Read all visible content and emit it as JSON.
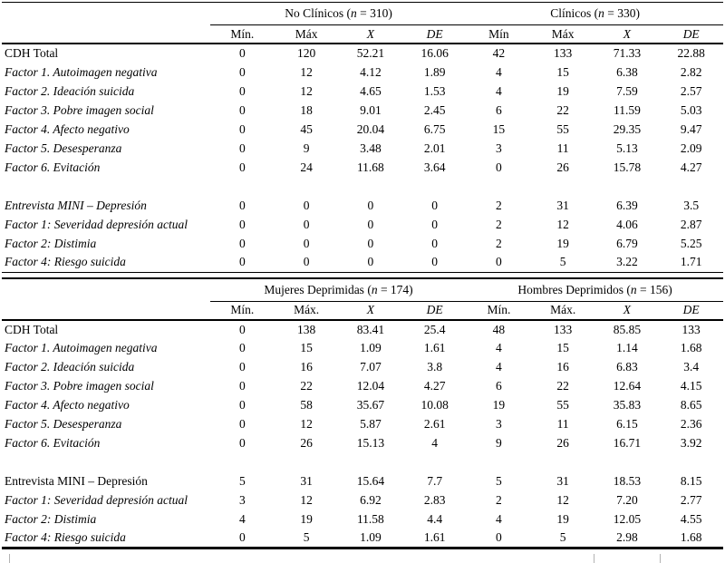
{
  "page": {
    "background_color": "#ffffff",
    "text_color": "#000000",
    "rule_color": "#000000",
    "cutoff_line_color": "#b3b3b3"
  },
  "tables": [
    {
      "name": "no-clinicos-vs-clinicos",
      "groups": [
        {
          "pre": "No Clínicos (",
          "nvar": "n",
          "post": " = 310)"
        },
        {
          "pre": "Clínicos (",
          "nvar": "n",
          "post": " = 330)"
        }
      ],
      "subheaders": [
        {
          "t": "Mín.",
          "i": false
        },
        {
          "t": "Máx",
          "i": false
        },
        {
          "t": "X",
          "i": true
        },
        {
          "t": "DE",
          "i": true
        },
        {
          "t": "Mín",
          "i": false
        },
        {
          "t": "Máx",
          "i": false
        },
        {
          "t": "X",
          "i": true
        },
        {
          "t": "DE",
          "i": true
        }
      ],
      "rows": [
        {
          "label": "CDH Total",
          "italic": false,
          "values": [
            "0",
            "120",
            "52.21",
            "16.06",
            "42",
            "133",
            "71.33",
            "22.88"
          ]
        },
        {
          "label": "Factor 1. Autoimagen negativa",
          "italic": true,
          "values": [
            "0",
            "12",
            "4.12",
            "1.89",
            "4",
            "15",
            "6.38",
            "2.82"
          ]
        },
        {
          "label": "Factor 2. Ideación suicida",
          "italic": true,
          "values": [
            "0",
            "12",
            "4.65",
            "1.53",
            "4",
            "19",
            "7.59",
            "2.57"
          ]
        },
        {
          "label": "Factor 3. Pobre imagen social",
          "italic": true,
          "values": [
            "0",
            "18",
            "9.01",
            "2.45",
            "6",
            "22",
            "11.59",
            "5.03"
          ]
        },
        {
          "label": "Factor 4. Afecto negativo",
          "italic": true,
          "values": [
            "0",
            "45",
            "20.04",
            "6.75",
            "15",
            "55",
            "29.35",
            "9.47"
          ]
        },
        {
          "label": "Factor 5. Desesperanza",
          "italic": true,
          "values": [
            "0",
            "9",
            "3.48",
            "2.01",
            "3",
            "11",
            "5.13",
            "2.09"
          ]
        },
        {
          "label": "Factor 6. Evitación",
          "italic": true,
          "values": [
            "0",
            "24",
            "11.68",
            "3.64",
            "0",
            "26",
            "15.78",
            "4.27"
          ]
        },
        {
          "spacer": true
        },
        {
          "label": "Entrevista MINI – Depresión",
          "italic": true,
          "values": [
            "0",
            "0",
            "0",
            "0",
            "2",
            "31",
            "6.39",
            "3.5"
          ]
        },
        {
          "label": "Factor 1: Severidad depresión actual",
          "italic": true,
          "values": [
            "0",
            "0",
            "0",
            "0",
            "2",
            "12",
            "4.06",
            "2.87"
          ]
        },
        {
          "label": "Factor 2: Distimia",
          "italic": true,
          "values": [
            "0",
            "0",
            "0",
            "0",
            "2",
            "19",
            "6.79",
            "5.25"
          ]
        },
        {
          "label": "Factor 4: Riesgo suicida",
          "italic": true,
          "values": [
            "0",
            "0",
            "0",
            "0",
            "0",
            "5",
            "3.22",
            "1.71"
          ]
        }
      ]
    },
    {
      "name": "mujeres-vs-hombres-deprimidos",
      "groups": [
        {
          "pre": "Mujeres Deprimidas (",
          "nvar": "n",
          "post": " = 174)"
        },
        {
          "pre": "Hombres Deprimidos (",
          "nvar": "n",
          "post": " = 156)"
        }
      ],
      "subheaders": [
        {
          "t": "Mín.",
          "i": false
        },
        {
          "t": "Máx.",
          "i": false
        },
        {
          "t": "X",
          "i": true
        },
        {
          "t": "DE",
          "i": true
        },
        {
          "t": "Mín.",
          "i": false
        },
        {
          "t": "Máx.",
          "i": false
        },
        {
          "t": "X",
          "i": true
        },
        {
          "t": "DE",
          "i": true
        }
      ],
      "rows": [
        {
          "label": "CDH Total",
          "italic": false,
          "values": [
            "0",
            "138",
            "83.41",
            "25.4",
            "48",
            "133",
            "85.85",
            "133"
          ]
        },
        {
          "label": "Factor 1. Autoimagen negativa",
          "italic": true,
          "values": [
            "0",
            "15",
            "1.09",
            "1.61",
            "4",
            "15",
            "1.14",
            "1.68"
          ]
        },
        {
          "label": "Factor 2. Ideación suicida",
          "italic": true,
          "values": [
            "0",
            "16",
            "7.07",
            "3.8",
            "4",
            "16",
            "6.83",
            "3.4"
          ]
        },
        {
          "label": "Factor 3. Pobre imagen social",
          "italic": true,
          "values": [
            "0",
            "22",
            "12.04",
            "4.27",
            "6",
            "22",
            "12.64",
            "4.15"
          ]
        },
        {
          "label": "Factor 4. Afecto negativo",
          "italic": true,
          "values": [
            "0",
            "58",
            "35.67",
            "10.08",
            "19",
            "55",
            "35.83",
            "8.65"
          ]
        },
        {
          "label": "Factor 5. Desesperanza",
          "italic": true,
          "values": [
            "0",
            "12",
            "5.87",
            "2.61",
            "3",
            "11",
            "6.15",
            "2.36"
          ]
        },
        {
          "label": "Factor 6. Evitación",
          "italic": true,
          "values": [
            "0",
            "26",
            "15.13",
            "4",
            "9",
            "26",
            "16.71",
            "3.92"
          ]
        },
        {
          "spacer": true
        },
        {
          "label": "Entrevista MINI – Depresión",
          "italic": false,
          "values": [
            "5",
            "31",
            "15.64",
            "7.7",
            "5",
            "31",
            "18.53",
            "8.15"
          ]
        },
        {
          "label": "Factor 1: Severidad depresión actual",
          "italic": true,
          "values": [
            "3",
            "12",
            "6.92",
            "2.83",
            "2",
            "12",
            "7.20",
            "2.77"
          ]
        },
        {
          "label": "Factor 2: Distimia",
          "italic": true,
          "values": [
            "4",
            "19",
            "11.58",
            "4.4",
            "4",
            "19",
            "12.05",
            "4.55"
          ]
        },
        {
          "label": "Factor 4: Riesgo suicida",
          "italic": true,
          "values": [
            "0",
            "5",
            "1.09",
            "1.61",
            "0",
            "5",
            "2.98",
            "1.68"
          ]
        }
      ]
    }
  ]
}
